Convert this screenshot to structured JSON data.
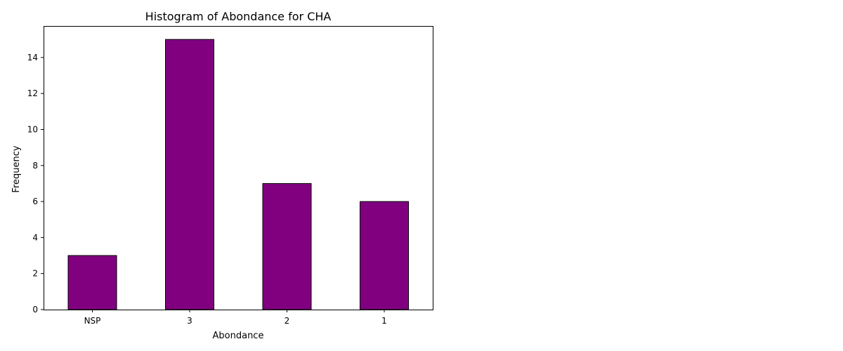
{
  "chart_data": {
    "type": "bar",
    "title": "Histogram of Abondance for CHA",
    "xlabel": "Abondance",
    "ylabel": "Frequency",
    "categories": [
      "NSP",
      "3",
      "2",
      "1"
    ],
    "values": [
      3,
      15,
      7,
      6
    ],
    "ylim": [
      0,
      15.75
    ],
    "yticks": [
      0,
      2,
      4,
      6,
      8,
      10,
      12,
      14
    ],
    "bar_color": "#800080",
    "edge_color": "#000000",
    "grid": false,
    "legend": "none"
  }
}
